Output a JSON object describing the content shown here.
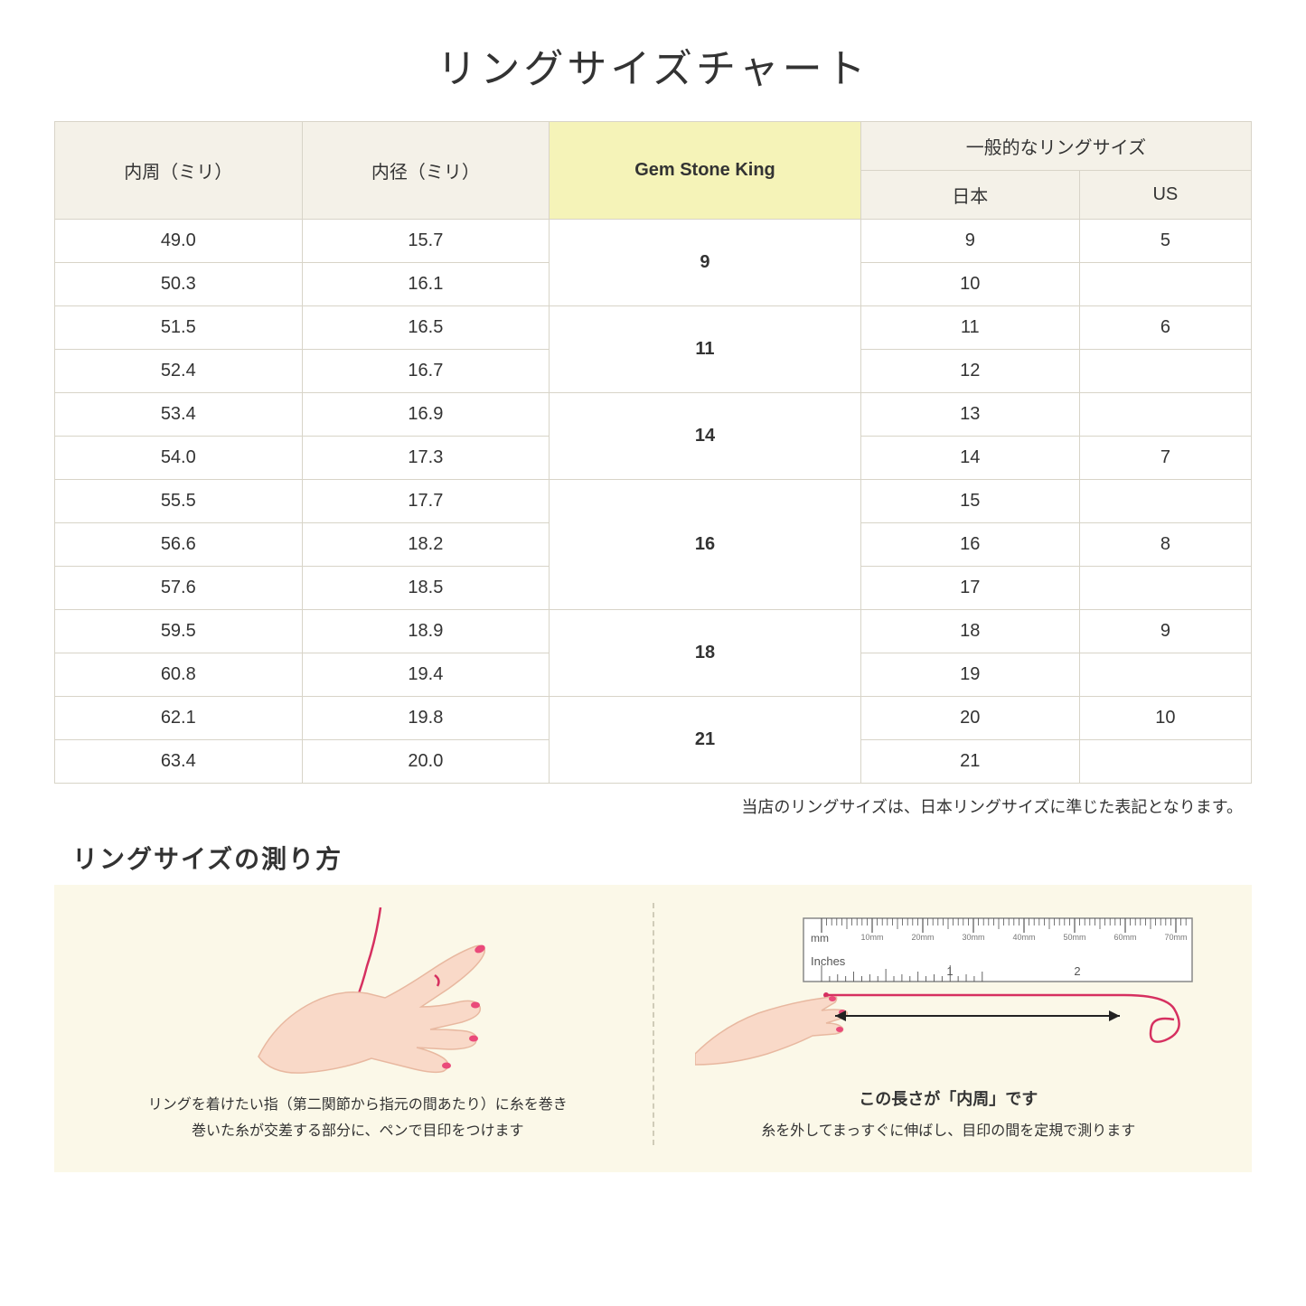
{
  "title": "リングサイズチャート",
  "headers": {
    "circumference": "内周（ミリ）",
    "diameter": "内径（ミリ）",
    "gsk": "Gem Stone King",
    "general": "一般的なリングサイズ",
    "japan": "日本",
    "us": "US"
  },
  "rows": [
    {
      "circ": "49.0",
      "dia": "15.7",
      "jp": "9",
      "us": "5"
    },
    {
      "circ": "50.3",
      "dia": "16.1",
      "jp": "10",
      "us": ""
    },
    {
      "circ": "51.5",
      "dia": "16.5",
      "jp": "11",
      "us": "6"
    },
    {
      "circ": "52.4",
      "dia": "16.7",
      "jp": "12",
      "us": ""
    },
    {
      "circ": "53.4",
      "dia": "16.9",
      "jp": "13",
      "us": ""
    },
    {
      "circ": "54.0",
      "dia": "17.3",
      "jp": "14",
      "us": "7"
    },
    {
      "circ": "55.5",
      "dia": "17.7",
      "jp": "15",
      "us": ""
    },
    {
      "circ": "56.6",
      "dia": "18.2",
      "jp": "16",
      "us": "8"
    },
    {
      "circ": "57.6",
      "dia": "18.5",
      "jp": "17",
      "us": ""
    },
    {
      "circ": "59.5",
      "dia": "18.9",
      "jp": "18",
      "us": "9"
    },
    {
      "circ": "60.8",
      "dia": "19.4",
      "jp": "19",
      "us": ""
    },
    {
      "circ": "62.1",
      "dia": "19.8",
      "jp": "20",
      "us": "10"
    },
    {
      "circ": "63.4",
      "dia": "20.0",
      "jp": "21",
      "us": ""
    }
  ],
  "gsk_groups": [
    {
      "label": "9",
      "span": 2
    },
    {
      "label": "11",
      "span": 2
    },
    {
      "label": "14",
      "span": 2
    },
    {
      "label": "16",
      "span": 3
    },
    {
      "label": "18",
      "span": 2
    },
    {
      "label": "21",
      "span": 2
    }
  ],
  "footnote": "当店のリングサイズは、日本リングサイズに準じた表記となります。",
  "howto": {
    "title": "リングサイズの測り方",
    "left_caption_l1": "リングを着けたい指（第二関節から指元の間あたり）に糸を巻き",
    "left_caption_l2": "巻いた糸が交差する部分に、ペンで目印をつけます",
    "right_ruler_label": "この長さが「内周」です",
    "right_caption": "糸を外してまっすぐに伸ばし、目印の間を定規で測ります",
    "ruler_mm": "mm",
    "ruler_inches": "Inches",
    "ruler_ticks_mm": [
      "10mm",
      "20mm",
      "30mm",
      "40mm",
      "50mm",
      "60mm",
      "70mm"
    ]
  },
  "styling": {
    "header_bg": "#f4f1e8",
    "gsk_bg": "#f5f3b8",
    "border_color": "#d8d4c8",
    "panel_bg": "#fbf8e8",
    "hand_skin": "#f9d9c8",
    "hand_outline": "#e8b8a0",
    "nail_color": "#ea4a7a",
    "thread_color": "#d63060",
    "ruler_fill": "#ffffff",
    "ruler_stroke": "#555555",
    "arrow_color": "#222222"
  }
}
